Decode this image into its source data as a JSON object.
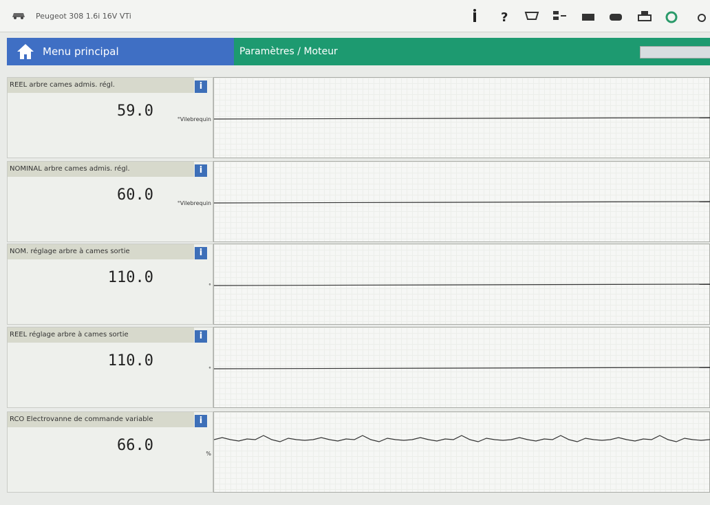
{
  "header": {
    "vehicle": "Peugeot 308 1.6i 16V VTi"
  },
  "nav": {
    "home": "Menu principal",
    "section": "Paramètres / Moteur"
  },
  "panels": [
    {
      "label": "REEL arbre cames admis. régl.",
      "value": "59.0",
      "unit": "°Vilebrequin"
    },
    {
      "label": "NOMINAL arbre cames admis. régl.",
      "value": "60.0",
      "unit": "°Vilebrequin"
    },
    {
      "label": "NOM. réglage arbre à cames sortie",
      "value": "110.0",
      "unit": "°"
    },
    {
      "label": "REEL réglage arbre à cames sortie",
      "value": "110.0",
      "unit": "°"
    },
    {
      "label": "RCO Electrovanne de commande variable",
      "value": "66.0",
      "unit": "%"
    }
  ]
}
